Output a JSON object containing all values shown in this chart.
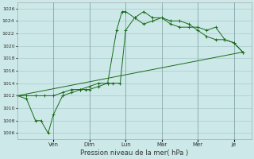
{
  "background_color": "#cce8e8",
  "grid_color": "#aacccc",
  "line_color": "#1a6b1a",
  "title": "Pression niveau de la mer( hPa )",
  "ylim": [
    1005,
    1027
  ],
  "yticks": [
    1006,
    1008,
    1010,
    1012,
    1014,
    1016,
    1018,
    1020,
    1022,
    1024,
    1026
  ],
  "day_labels": [
    "Ven",
    "Dim",
    "Lun",
    "Mar",
    "Mer",
    "Je"
  ],
  "day_positions": [
    2.0,
    4.0,
    6.0,
    8.0,
    10.0,
    12.0
  ],
  "xlim": [
    0,
    13.0
  ],
  "line1": {
    "x": [
      0,
      12.5
    ],
    "y": [
      1012,
      1019
    ]
  },
  "line2": {
    "x": [
      0,
      0.5,
      1.0,
      1.3,
      1.7,
      2.0,
      2.5,
      3.0,
      3.5,
      3.8,
      4.0,
      4.5,
      5.0,
      5.5,
      5.8,
      6.0,
      6.5,
      7.0,
      7.5,
      8.0,
      8.5,
      9.0,
      9.5,
      10.0,
      10.5,
      11.0,
      11.5,
      12.0,
      12.5
    ],
    "y": [
      1012,
      1011.5,
      1008,
      1008,
      1006,
      1009,
      1012,
      1012.5,
      1013,
      1013,
      1013,
      1013.5,
      1014,
      1022.5,
      1025.5,
      1025.5,
      1024.5,
      1025.5,
      1024.5,
      1024.5,
      1024,
      1024,
      1023.5,
      1022.5,
      1021.5,
      1021,
      1021,
      1020.5,
      1019
    ]
  },
  "line3": {
    "x": [
      0,
      0.5,
      1.0,
      1.5,
      2.0,
      2.5,
      3.0,
      3.5,
      4.0,
      4.5,
      5.0,
      5.3,
      5.7,
      6.0,
      6.5,
      7.0,
      7.5,
      8.0,
      8.5,
      9.0,
      9.5,
      10.0,
      10.5,
      11.0,
      11.5,
      12.0,
      12.5
    ],
    "y": [
      1012,
      1012,
      1012,
      1012,
      1012,
      1012.5,
      1013,
      1013,
      1013.5,
      1014,
      1014,
      1014,
      1014,
      1022.5,
      1024.5,
      1023.5,
      1024,
      1024.5,
      1023.5,
      1023,
      1023,
      1023,
      1022.5,
      1023,
      1021,
      1020.5,
      1019
    ]
  }
}
